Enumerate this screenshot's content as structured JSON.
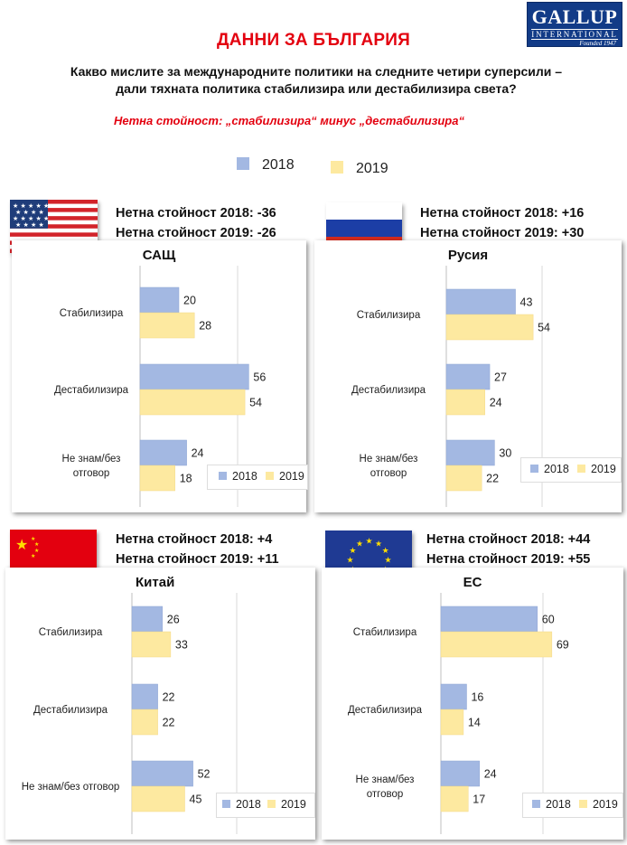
{
  "page": {
    "title": "ДАННИ ЗА БЪЛГАРИЯ",
    "question": "Какво мислите за международните политики на следните четири суперсили – дали тяхната политика стабилизира или дестабилизира света?",
    "subtitle": "Нетна стойност: „стабилизира“ минус „дестабилизира“",
    "logo": {
      "main": "GALLUP",
      "sub": "INTERNATIONAL",
      "founded": "Founded 1947"
    },
    "legend": {
      "y2018": "2018",
      "y2019": "2019"
    }
  },
  "colors": {
    "y2018": "#a3b8e2",
    "y2019": "#fde9a0",
    "accent_red": "#e3000f",
    "gridline": "#d9d9d9"
  },
  "panels": [
    {
      "flag_icon": "usa-flag-icon",
      "name": "САЩ",
      "net_2018": "Нетна стойност  2018: -36",
      "net_2019": "Нетна стойност  2019: -26"
    },
    {
      "flag_icon": "russia-flag-icon",
      "name": "Русия",
      "net_2018": "Нетна стойност  2018: +16",
      "net_2019": "Нетна стойност  2019: +30"
    },
    {
      "flag_icon": "china-flag-icon",
      "name": "Китай",
      "net_2018": "Нетна стойност  2018: +4",
      "net_2019": "Нетна стойност  2019: +11"
    },
    {
      "flag_icon": "eu-flag-icon",
      "name": "ЕС",
      "net_2018": "Нетна стойност  2018: +44",
      "net_2019": "Нетна стойност  2019: +55"
    }
  ],
  "chart_data": [
    {
      "type": "bar",
      "orientation": "horizontal",
      "title": "САЩ",
      "categories": [
        "Стабилизира",
        "Дестабилизира",
        "Не знам/без\nотговор"
      ],
      "series": [
        {
          "name": "2018",
          "values": [
            20,
            56,
            24
          ]
        },
        {
          "name": "2019",
          "values": [
            28,
            54,
            18
          ]
        }
      ],
      "legend": "bottom-right",
      "grid": true
    },
    {
      "type": "bar",
      "orientation": "horizontal",
      "title": "Русия",
      "categories": [
        "Стабилизира",
        "Дестабилизира",
        "Не знам/без\nотговор"
      ],
      "series": [
        {
          "name": "2018",
          "values": [
            43,
            27,
            30
          ]
        },
        {
          "name": "2019",
          "values": [
            54,
            24,
            22
          ]
        }
      ],
      "legend": "bottom-right",
      "grid": true
    },
    {
      "type": "bar",
      "orientation": "horizontal",
      "title": "Китай",
      "categories": [
        "Стабилизира",
        "Дестабилизира",
        "Не знам/без отговор"
      ],
      "series": [
        {
          "name": "2018",
          "values": [
            26,
            22,
            52
          ]
        },
        {
          "name": "2019",
          "values": [
            33,
            22,
            45
          ]
        }
      ],
      "legend": "bottom-right",
      "grid": true
    },
    {
      "type": "bar",
      "orientation": "horizontal",
      "title": "ЕС",
      "categories": [
        "Стабилизира",
        "Дестабилизира",
        "Не знам/без\nотговор"
      ],
      "series": [
        {
          "name": "2018",
          "values": [
            60,
            16,
            24
          ]
        },
        {
          "name": "2019",
          "values": [
            69,
            14,
            17
          ]
        }
      ],
      "legend": "bottom-right",
      "grid": true
    }
  ]
}
